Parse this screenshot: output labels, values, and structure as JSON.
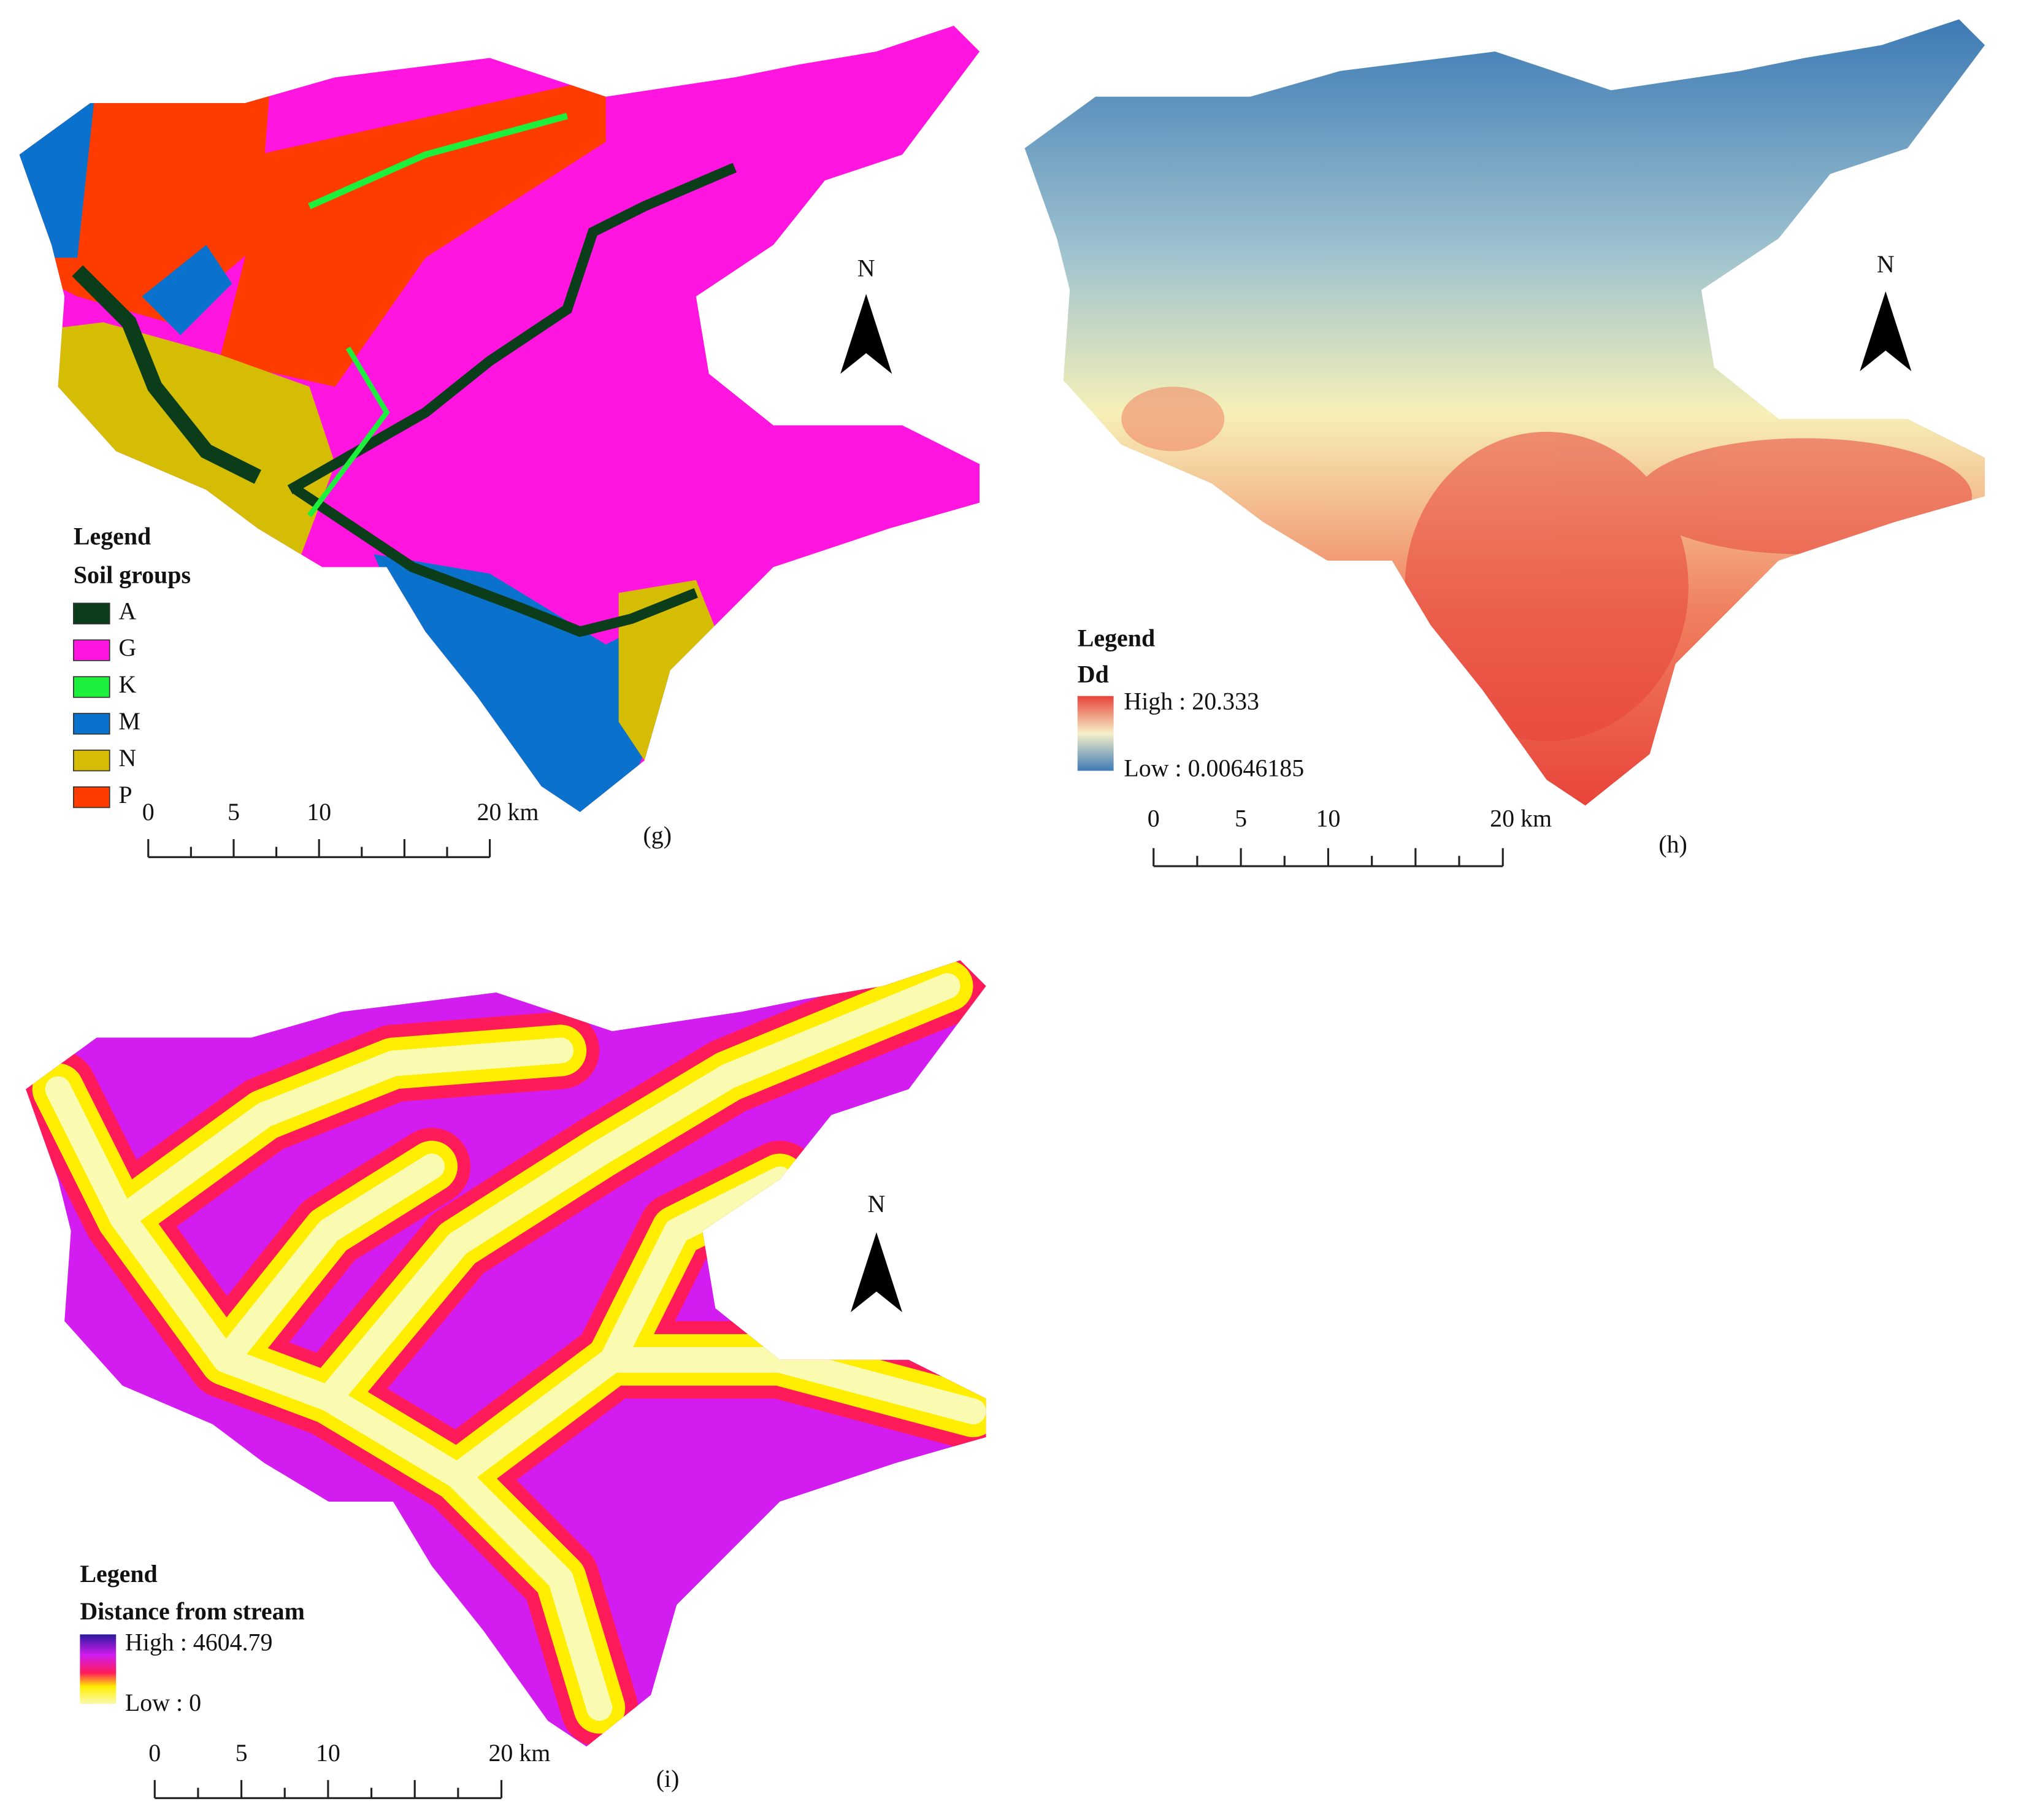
{
  "panels": [
    {
      "label": "(g)",
      "north": "N",
      "legend": {
        "heading": "Legend",
        "title": "Soil groups",
        "items": [
          {
            "name": "A",
            "color": "#0b3d1a"
          },
          {
            "name": "G",
            "color": "#ff14e0"
          },
          {
            "name": "K",
            "color": "#1cf03c"
          },
          {
            "name": "M",
            "color": "#0a72cc"
          },
          {
            "name": "N",
            "color": "#d6bd05"
          },
          {
            "name": "P",
            "color": "#ff3c00"
          }
        ]
      },
      "scale": [
        "0",
        "5",
        "10",
        "20 km"
      ]
    },
    {
      "label": "(h)",
      "north": "N",
      "legend": {
        "heading": "Legend",
        "title": "Dd",
        "high": "High : 20.333",
        "low": "Low : 0.00646185"
      },
      "scale": [
        "0",
        "5",
        "10",
        "20 km"
      ]
    },
    {
      "label": "(i)",
      "north": "N",
      "legend": {
        "heading": "Legend",
        "title": "Distance from stream",
        "high": "High : 4604.79",
        "low": "Low : 0"
      },
      "scale": [
        "0",
        "5",
        "10",
        "20 km"
      ]
    }
  ]
}
